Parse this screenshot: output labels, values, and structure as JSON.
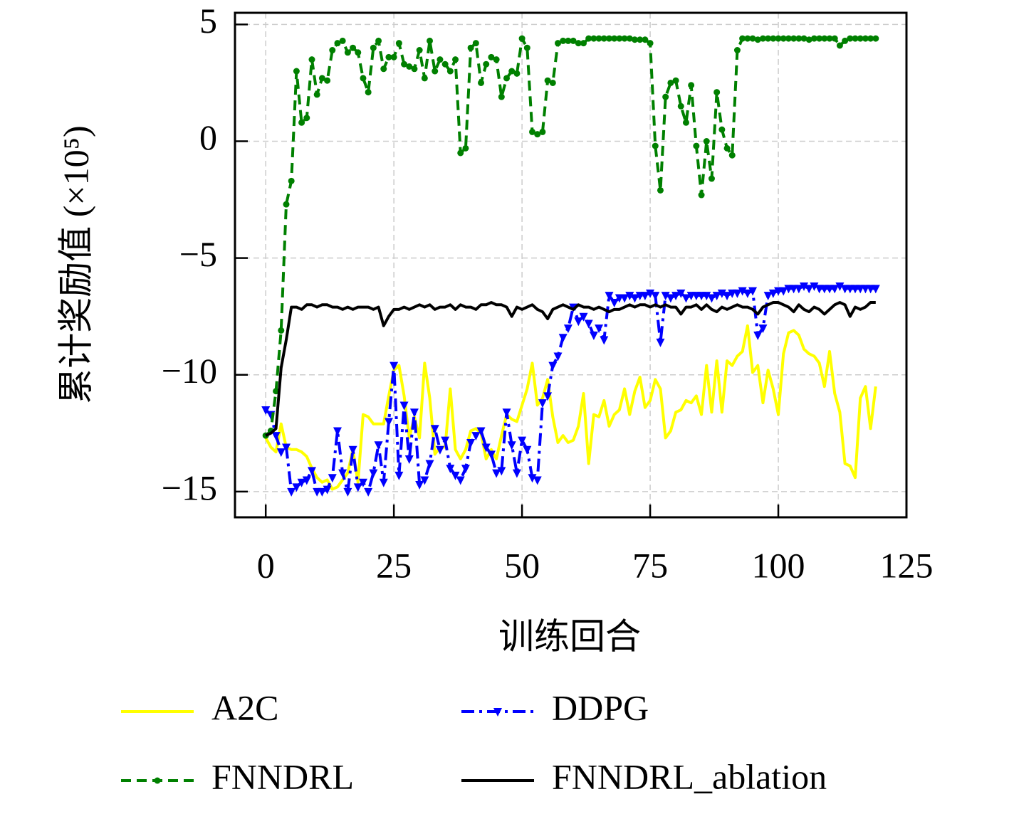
{
  "chart_data": {
    "type": "line",
    "xlabel": "训练回合",
    "ylabel": "累计奖励值 (×10⁵)",
    "x": [
      0,
      1,
      2,
      3,
      4,
      5,
      6,
      7,
      8,
      9,
      10,
      11,
      12,
      13,
      14,
      15,
      16,
      17,
      18,
      19,
      20,
      21,
      22,
      23,
      24,
      25,
      26,
      27,
      28,
      29,
      30,
      31,
      32,
      33,
      34,
      35,
      36,
      37,
      38,
      39,
      40,
      41,
      42,
      43,
      44,
      45,
      46,
      47,
      48,
      49,
      50,
      51,
      52,
      53,
      54,
      55,
      56,
      57,
      58,
      59,
      60,
      61,
      62,
      63,
      64,
      65,
      66,
      67,
      68,
      69,
      70,
      71,
      72,
      73,
      74,
      75,
      76,
      77,
      78,
      79,
      80,
      81,
      82,
      83,
      84,
      85,
      86,
      87,
      88,
      89,
      90,
      91,
      92,
      93,
      94,
      95,
      96,
      97,
      98,
      99,
      100,
      101,
      102,
      103,
      104,
      105,
      106,
      107,
      108,
      109,
      110,
      111,
      112,
      113,
      114,
      115,
      116,
      117,
      118,
      119
    ],
    "series": [
      {
        "name": "A2C",
        "color": "#ffff00",
        "linestyle": "solid",
        "marker": "none",
        "values": [
          -12.7,
          -13.1,
          -13.3,
          -12.1,
          -13.1,
          -13.2,
          -13.2,
          -13.3,
          -13.5,
          -14.0,
          -14.4,
          -14.6,
          -14.5,
          -14.9,
          -14.8,
          -14.5,
          -14.2,
          -13.2,
          -14.6,
          -11.7,
          -11.8,
          -12.1,
          -12.1,
          -12.1,
          -10.9,
          -9.8,
          -9.6,
          -10.9,
          -12.7,
          -11.8,
          -12.7,
          -9.5,
          -11.0,
          -13.4,
          -13.1,
          -13.1,
          -10.6,
          -13.2,
          -13.6,
          -13.2,
          -12.4,
          -12.3,
          -12.5,
          -13.6,
          -13.2,
          -13.6,
          -12.6,
          -11.7,
          -11.9,
          -12.0,
          -11.3,
          -10.6,
          -9.5,
          -11.3,
          -11.0,
          -10.2,
          -11.8,
          -12.9,
          -12.6,
          -12.9,
          -12.8,
          -12.2,
          -10.8,
          -13.8,
          -11.7,
          -11.8,
          -11.1,
          -12.2,
          -11.7,
          -11.5,
          -10.6,
          -11.7,
          -10.7,
          -10.1,
          -11.4,
          -11.1,
          -10.2,
          -10.6,
          -12.7,
          -12.4,
          -11.6,
          -11.5,
          -11.1,
          -11.2,
          -10.9,
          -11.7,
          -9.6,
          -11.6,
          -9.4,
          -11.6,
          -9.4,
          -9.6,
          -9.2,
          -9.0,
          -7.9,
          -9.9,
          -9.6,
          -11.2,
          -9.8,
          -10.6,
          -11.7,
          -9.1,
          -8.2,
          -8.1,
          -8.3,
          -8.9,
          -9.1,
          -9.2,
          -9.5,
          -10.5,
          -9.0,
          -10.8,
          -11.6,
          -13.8,
          -13.9,
          -14.4,
          -11.0,
          -10.5,
          -12.3,
          -10.5
        ]
      },
      {
        "name": "DDPG",
        "color": "#0000ff",
        "linestyle": "dashdot",
        "marker": "triangle-down",
        "values": [
          -11.5,
          -11.7,
          -12.6,
          -13.3,
          -13.1,
          -15.0,
          -14.8,
          -14.6,
          -14.5,
          -14.1,
          -15.0,
          -15.0,
          -14.9,
          -14.4,
          -12.4,
          -14.2,
          -15.0,
          -13.2,
          -14.8,
          -14.6,
          -15.0,
          -14.2,
          -13.0,
          -14.6,
          -12.0,
          -9.6,
          -14.3,
          -11.3,
          -13.6,
          -11.6,
          -14.7,
          -14.5,
          -13.8,
          -12.3,
          -13.2,
          -12.8,
          -14.0,
          -14.3,
          -14.5,
          -14.0,
          -12.9,
          -12.6,
          -12.4,
          -13.1,
          -13.4,
          -14.2,
          -14.1,
          -11.6,
          -13.0,
          -14.2,
          -12.8,
          -13.2,
          -14.4,
          -14.5,
          -11.2,
          -10.9,
          -9.6,
          -9.2,
          -8.4,
          -8.0,
          -7.1,
          -7.7,
          -7.5,
          -7.8,
          -8.3,
          -8.0,
          -8.5,
          -6.6,
          -6.9,
          -6.7,
          -6.7,
          -6.6,
          -6.7,
          -6.6,
          -6.6,
          -6.5,
          -6.6,
          -8.6,
          -6.6,
          -6.7,
          -6.6,
          -6.5,
          -6.7,
          -6.6,
          -6.6,
          -6.6,
          -6.6,
          -6.7,
          -6.6,
          -6.5,
          -6.6,
          -6.5,
          -6.5,
          -6.4,
          -6.5,
          -6.4,
          -8.3,
          -8.0,
          -6.6,
          -6.5,
          -6.4,
          -6.4,
          -6.3,
          -6.3,
          -6.3,
          -6.2,
          -6.3,
          -6.2,
          -6.3,
          -6.3,
          -6.3,
          -6.3,
          -6.2,
          -6.3,
          -6.3,
          -6.3,
          -6.3,
          -6.3,
          -6.3,
          -6.3
        ]
      },
      {
        "name": "FNNDRL",
        "color": "#008000",
        "linestyle": "dashed",
        "marker": "circle",
        "values": [
          -12.6,
          -12.4,
          -10.7,
          -8.1,
          -2.7,
          -1.7,
          3.0,
          0.8,
          1.0,
          3.5,
          2.0,
          2.7,
          2.6,
          3.9,
          4.2,
          4.3,
          3.8,
          4.0,
          3.8,
          2.7,
          2.1,
          4.0,
          4.3,
          3.1,
          3.6,
          3.6,
          4.2,
          3.3,
          3.2,
          3.1,
          3.9,
          2.7,
          4.3,
          3.0,
          3.5,
          3.3,
          3.0,
          3.5,
          -0.5,
          -0.3,
          4.0,
          4.2,
          2.5,
          3.3,
          3.6,
          3.5,
          1.9,
          2.7,
          3.0,
          2.9,
          4.4,
          4.0,
          0.4,
          0.3,
          0.4,
          2.6,
          2.5,
          4.2,
          4.3,
          4.3,
          4.3,
          4.2,
          4.2,
          4.4,
          4.4,
          4.4,
          4.4,
          4.4,
          4.4,
          4.4,
          4.4,
          4.4,
          4.35,
          4.35,
          4.35,
          4.2,
          -0.2,
          -2.1,
          1.9,
          2.5,
          2.6,
          1.5,
          0.8,
          2.4,
          -0.2,
          -2.3,
          0.0,
          -1.6,
          2.1,
          0.5,
          -0.3,
          -0.6,
          3.9,
          4.4,
          4.4,
          4.4,
          4.35,
          4.4,
          4.4,
          4.4,
          4.4,
          4.4,
          4.4,
          4.4,
          4.4,
          4.4,
          4.35,
          4.4,
          4.4,
          4.4,
          4.4,
          4.4,
          4.1,
          4.3,
          4.4,
          4.4,
          4.4,
          4.4,
          4.4,
          4.4
        ]
      },
      {
        "name": "FNNDRL_ablation",
        "color": "#000000",
        "linestyle": "solid",
        "marker": "none",
        "values": [
          -12.6,
          -12.5,
          -12.3,
          -9.7,
          -8.5,
          -7.1,
          -7.1,
          -7.2,
          -7.0,
          -7.0,
          -7.1,
          -7.0,
          -7.0,
          -7.1,
          -7.1,
          -7.2,
          -7.1,
          -7.2,
          -7.1,
          -7.1,
          -7.1,
          -7.2,
          -7.1,
          -7.9,
          -7.5,
          -7.2,
          -7.2,
          -7.1,
          -7.2,
          -7.1,
          -7.0,
          -7.1,
          -7.0,
          -7.2,
          -7.1,
          -7.1,
          -7.0,
          -7.2,
          -7.0,
          -7.1,
          -7.1,
          -7.2,
          -7.0,
          -7.0,
          -6.9,
          -7.0,
          -7.0,
          -7.1,
          -7.5,
          -7.1,
          -7.2,
          -7.1,
          -7.0,
          -7.2,
          -7.3,
          -7.6,
          -7.2,
          -7.1,
          -7.0,
          -7.1,
          -7.2,
          -7.0,
          -7.1,
          -7.1,
          -7.2,
          -7.1,
          -7.2,
          -7.3,
          -7.2,
          -7.2,
          -7.1,
          -7.0,
          -7.1,
          -7.0,
          -7.0,
          -7.1,
          -7.0,
          -7.1,
          -7.0,
          -7.1,
          -7.1,
          -7.4,
          -7.1,
          -7.1,
          -7.0,
          -7.2,
          -7.0,
          -7.2,
          -7.3,
          -7.1,
          -7.2,
          -7.1,
          -7.0,
          -7.1,
          -7.1,
          -7.2,
          -7.4,
          -7.1,
          -7.0,
          -6.9,
          -6.9,
          -7.0,
          -7.1,
          -7.3,
          -7.0,
          -7.2,
          -7.3,
          -7.1,
          -7.2,
          -7.4,
          -7.2,
          -7.0,
          -6.9,
          -7.0,
          -7.5,
          -7.1,
          -7.2,
          -7.1,
          -6.9,
          -6.9
        ]
      }
    ],
    "xlim": [
      -6,
      125
    ],
    "xticks": [
      0,
      25,
      50,
      75,
      100,
      125
    ],
    "ylim": [
      -16.1,
      5.5
    ],
    "yticks": [
      {
        "value": -15,
        "label": "−15"
      },
      {
        "value": -10,
        "label": "−10"
      },
      {
        "value": -5,
        "label": "−5"
      },
      0,
      5
    ],
    "grid": true,
    "legend": "below"
  }
}
